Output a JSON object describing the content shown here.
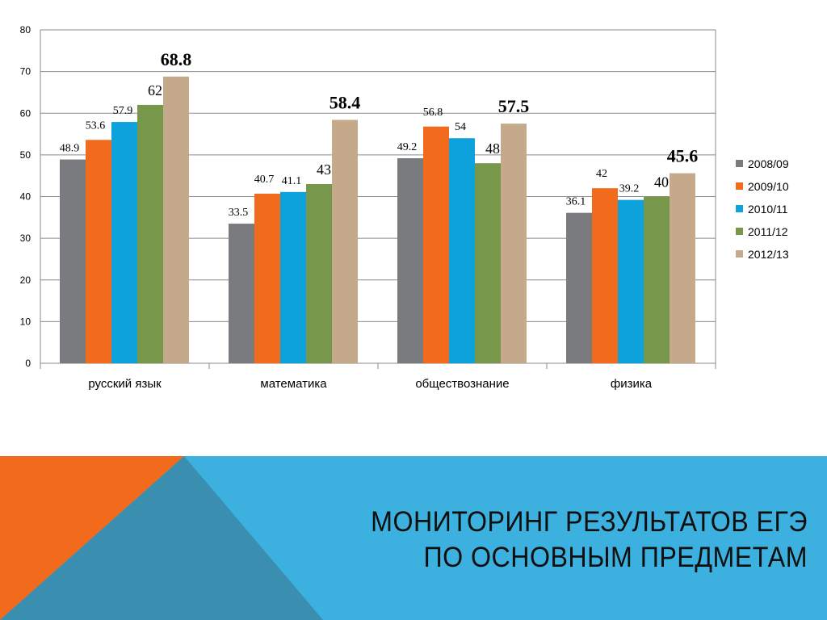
{
  "title": {
    "line1": "МОНИТОРИНГ РЕЗУЛЬТАТОВ ЕГЭ",
    "line2": "ПО ОСНОВНЫМ ПРЕДМЕТАМ"
  },
  "colors": {
    "banner_blue": "#3cb0de",
    "banner_orange": "#f26b1d",
    "banner_overlap": "#3a8fb0"
  },
  "chart_data": {
    "type": "bar",
    "categories": [
      "русский язык",
      "математика",
      "обществознание",
      "физика"
    ],
    "series": [
      {
        "name": "2008/09",
        "color": "#7a7b7e",
        "values": [
          48.9,
          33.5,
          49.2,
          36.1
        ]
      },
      {
        "name": "2009/10",
        "color": "#f26b1d",
        "values": [
          53.6,
          40.7,
          56.8,
          42
        ]
      },
      {
        "name": "2010/11",
        "color": "#0ea2dc",
        "values": [
          57.9,
          41.1,
          54,
          39.2
        ]
      },
      {
        "name": "2011/12",
        "color": "#77984a",
        "values": [
          62,
          43,
          48,
          40
        ]
      },
      {
        "name": "2012/13",
        "color": "#c4aa8a",
        "values": [
          68.8,
          58.4,
          57.5,
          45.6
        ]
      }
    ],
    "ylim": [
      0,
      80
    ],
    "yticks": [
      0,
      10,
      20,
      30,
      40,
      50,
      60,
      70,
      80
    ],
    "grid": true,
    "legend_position": "right",
    "xlabel": "",
    "ylabel": ""
  }
}
